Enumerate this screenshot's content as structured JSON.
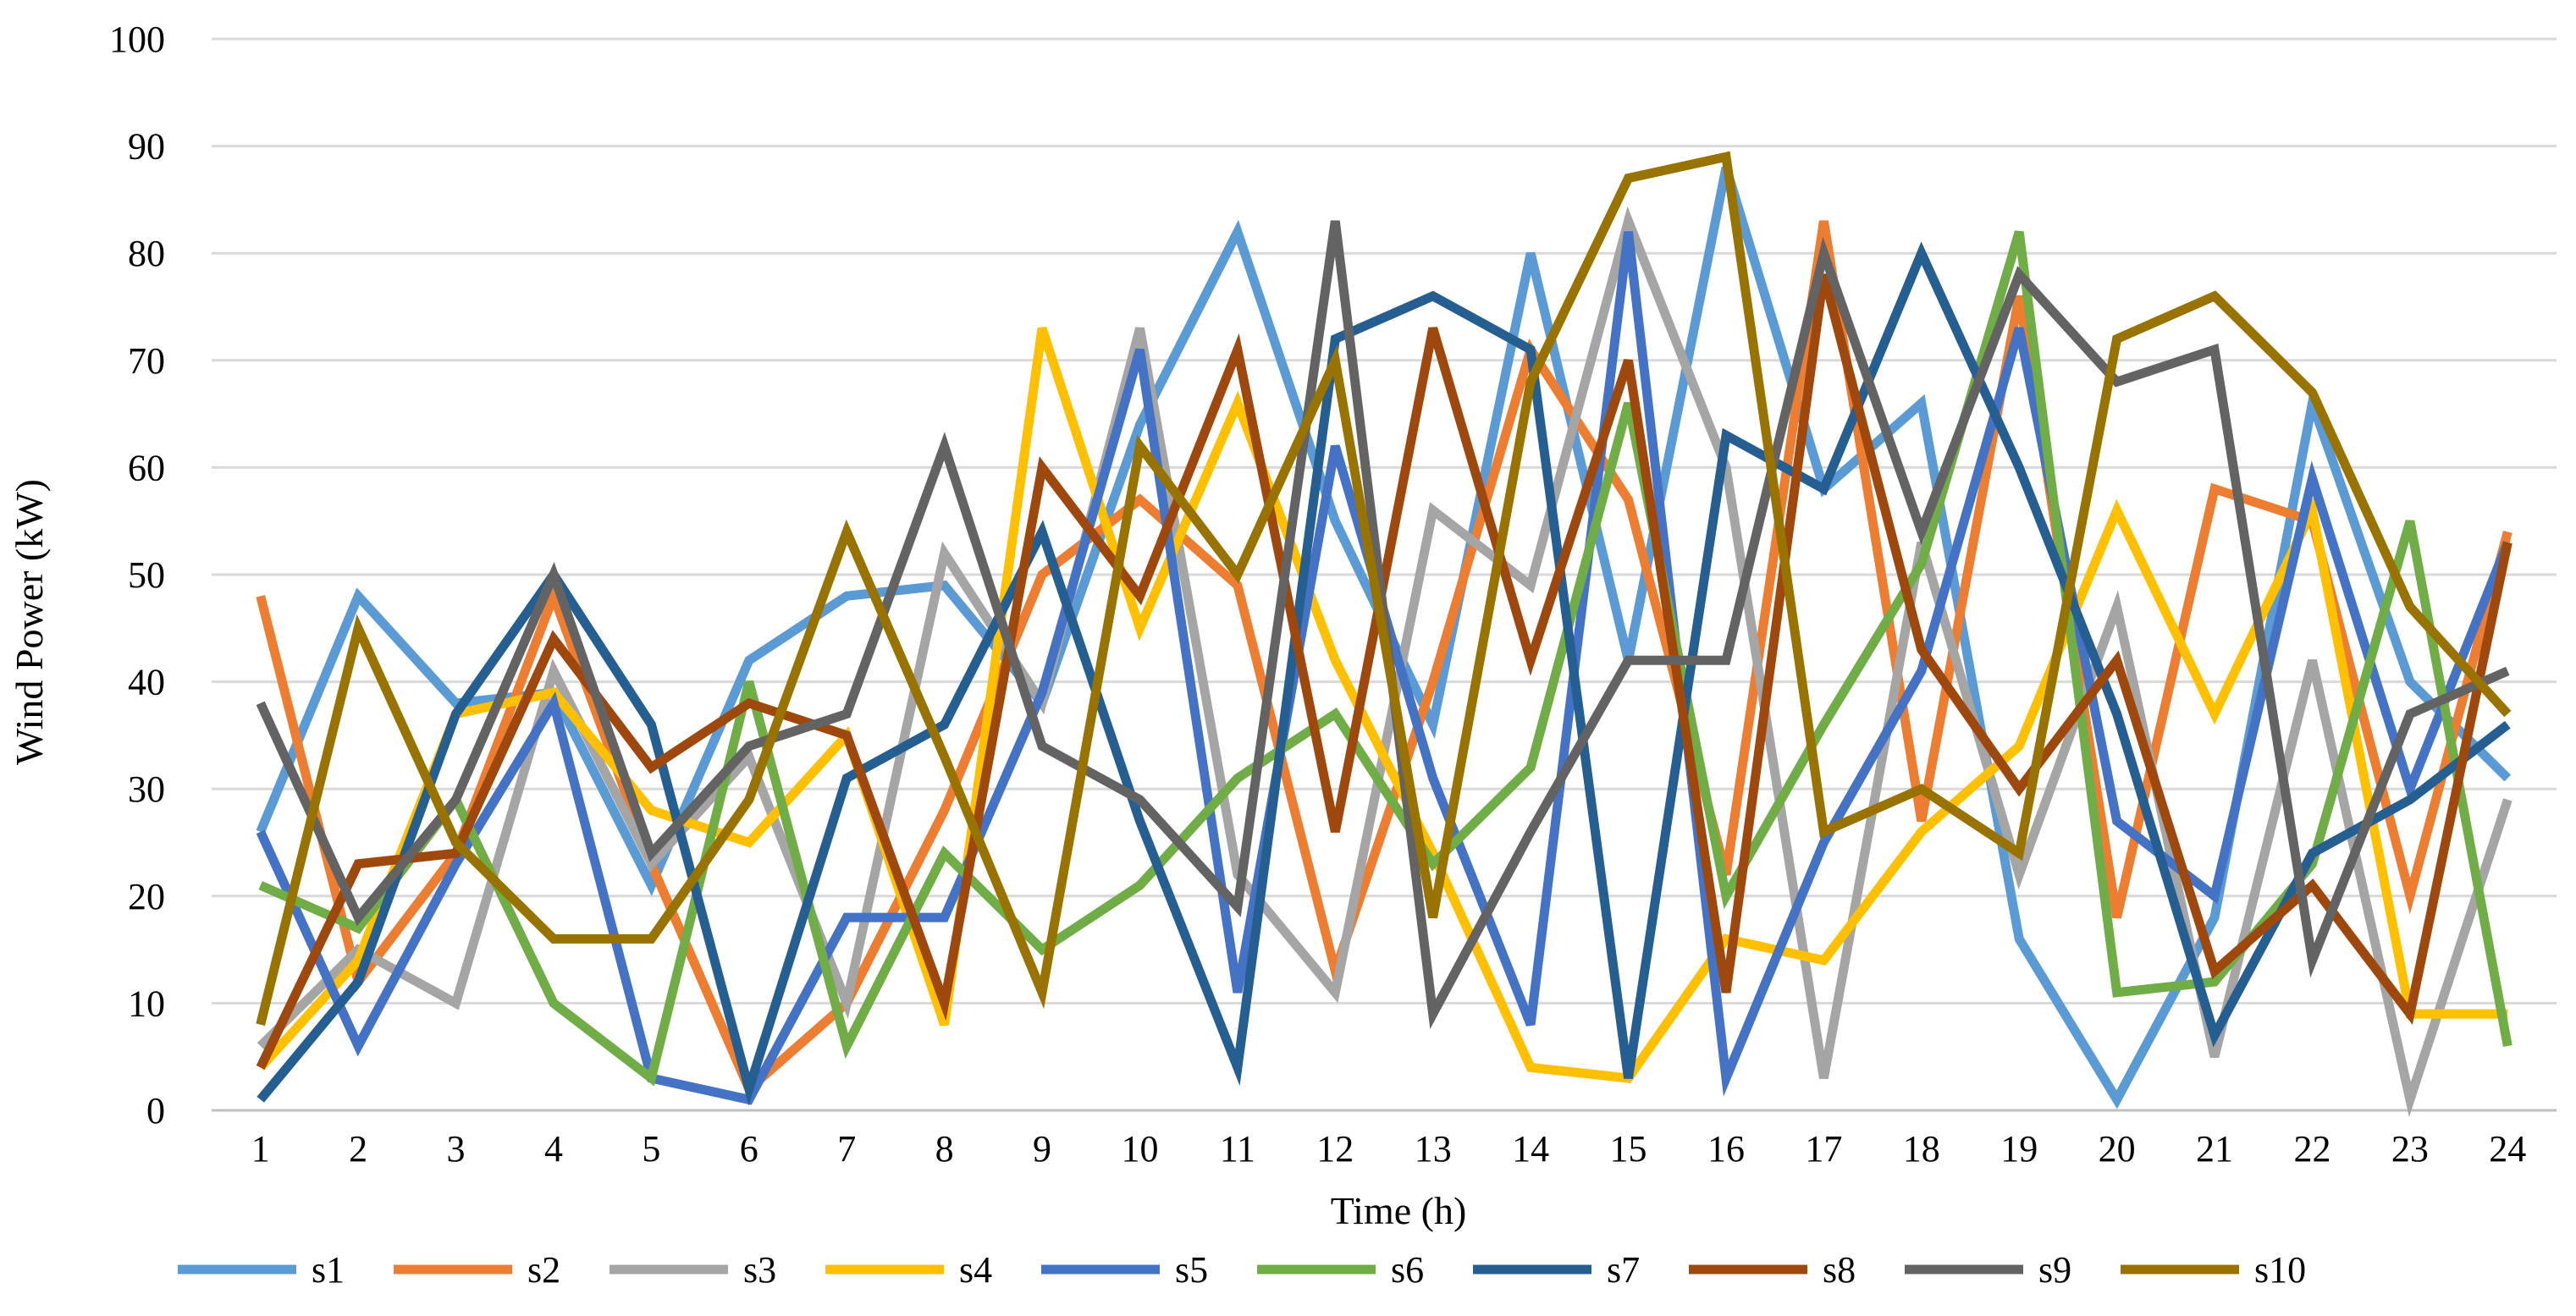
{
  "chart_data": {
    "type": "line",
    "title": "",
    "xlabel": "Time (h)",
    "ylabel": "Wind Power (kW)",
    "ylim": [
      0,
      100
    ],
    "yticks": [
      0,
      10,
      20,
      30,
      40,
      50,
      60,
      70,
      80,
      90,
      100
    ],
    "grid": true,
    "legend_position": "bottom",
    "categories": [
      "1",
      "2",
      "3",
      "4",
      "5",
      "6",
      "7",
      "8",
      "9",
      "10",
      "11",
      "12",
      "13",
      "14",
      "15",
      "16",
      "17",
      "18",
      "19",
      "20",
      "21",
      "22",
      "23",
      "24"
    ],
    "series": [
      {
        "name": "s1",
        "color": "#5B9BD5",
        "values": [
          26,
          48,
          38,
          39,
          21,
          42,
          48,
          49,
          38,
          64,
          82,
          55,
          36,
          80,
          42,
          88,
          58,
          66,
          16,
          1,
          18,
          66,
          40,
          31
        ]
      },
      {
        "name": "s2",
        "color": "#ED7D31",
        "values": [
          48,
          12,
          24,
          48,
          23,
          2,
          10,
          28,
          50,
          57,
          49,
          13,
          40,
          71,
          57,
          22,
          83,
          27,
          76,
          18,
          58,
          55,
          20,
          54
        ]
      },
      {
        "name": "s3",
        "color": "#A5A5A5",
        "values": [
          6,
          15,
          10,
          41,
          23,
          33,
          10,
          52,
          38,
          73,
          22,
          11,
          56,
          49,
          83,
          60,
          3,
          53,
          22,
          47,
          5,
          42,
          1,
          29
        ]
      },
      {
        "name": "s4",
        "color": "#FFC000",
        "values": [
          4,
          14,
          37,
          39,
          28,
          25,
          35,
          8,
          73,
          45,
          66,
          42,
          24,
          4,
          3,
          16,
          14,
          26,
          34,
          56,
          37,
          56,
          9,
          9
        ]
      },
      {
        "name": "s5",
        "color": "#4472C4",
        "values": [
          26,
          6,
          23,
          38,
          3,
          1,
          18,
          18,
          39,
          71,
          11,
          62,
          31,
          8,
          82,
          3,
          25,
          41,
          73,
          27,
          20,
          59,
          30,
          53
        ]
      },
      {
        "name": "s6",
        "color": "#70AD47",
        "values": [
          21,
          17,
          29,
          10,
          3,
          40,
          6,
          24,
          15,
          21,
          31,
          37,
          23,
          32,
          66,
          20,
          36,
          51,
          82,
          11,
          12,
          23,
          55,
          6
        ]
      },
      {
        "name": "s7",
        "color": "#255E91",
        "values": [
          1,
          12,
          37,
          50,
          36,
          2,
          31,
          36,
          54,
          27,
          4,
          72,
          76,
          71,
          3,
          63,
          58,
          80,
          60,
          37,
          7,
          24,
          29,
          36
        ]
      },
      {
        "name": "s8",
        "color": "#9E480E",
        "values": [
          4,
          23,
          24,
          44,
          32,
          38,
          35,
          10,
          60,
          48,
          71,
          26,
          73,
          42,
          70,
          11,
          78,
          43,
          30,
          42,
          13,
          21,
          9,
          53
        ]
      },
      {
        "name": "s9",
        "color": "#636363",
        "values": [
          38,
          18,
          29,
          50,
          24,
          34,
          37,
          62,
          34,
          29,
          19,
          83,
          9,
          26,
          42,
          42,
          80,
          54,
          78,
          68,
          71,
          14,
          37,
          41
        ]
      },
      {
        "name": "s10",
        "color": "#997300",
        "values": [
          8,
          45,
          25,
          16,
          16,
          29,
          54,
          33,
          11,
          62,
          50,
          70,
          18,
          68,
          87,
          89,
          26,
          30,
          24,
          72,
          76,
          67,
          47,
          37
        ]
      }
    ]
  }
}
